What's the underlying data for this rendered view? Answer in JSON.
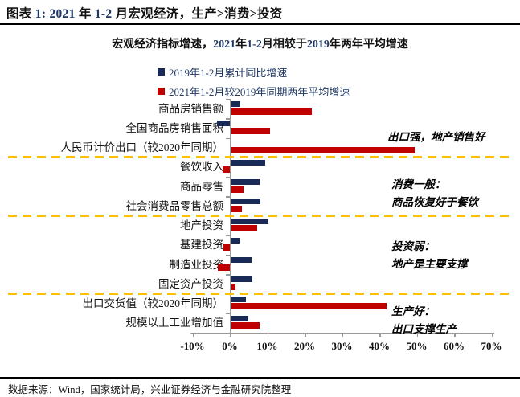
{
  "page": {
    "header_segments": [
      {
        "t": "图表 ",
        "c": "ink"
      },
      {
        "t": "1: 2021",
        "c": "num"
      },
      {
        "t": " 年 ",
        "c": "ink"
      },
      {
        "t": "1-2",
        "c": "num"
      },
      {
        "t": " 月宏观经济，生产>消费>投资",
        "c": "ink"
      }
    ],
    "header_text": "图表 1: 2021 年 1-2 月宏观经济，生产>消费>投资",
    "source": "数据来源：Wind，国家统计局，兴业证券经济与金融研究院整理"
  },
  "chart_data": {
    "type": "bar",
    "orientation": "horizontal",
    "title": "宏观经济指标增速，2021年1-2月相较于2019年两年平均增速",
    "title_segments": [
      {
        "t": "宏观经济指标增速，",
        "c": "ink"
      },
      {
        "t": "2021",
        "c": "num"
      },
      {
        "t": "年",
        "c": "ink"
      },
      {
        "t": "1-2",
        "c": "num"
      },
      {
        "t": "月相较于",
        "c": "ink"
      },
      {
        "t": "2019",
        "c": "num"
      },
      {
        "t": "年两年平均增速",
        "c": "ink"
      }
    ],
    "legend": [
      {
        "label": "2019年1-2月累计同比增速",
        "color": "#1A2A56"
      },
      {
        "label": "2021年1-2月较2019年同期两年平均增速",
        "color": "#C00000"
      }
    ],
    "legend_position": "top-left",
    "grid": false,
    "xlabel": "",
    "ylabel": "",
    "xlim": [
      -10,
      70
    ],
    "x_ticks": [
      "-10%",
      "0%",
      "10%",
      "20%",
      "30%",
      "40%",
      "50%",
      "60%",
      "70%"
    ],
    "x_tick_values": [
      -10,
      0,
      10,
      20,
      30,
      40,
      50,
      60,
      70
    ],
    "categories": [
      "商品房销售额",
      "全国商品房销售面积",
      "人民币计价出口（较2020年同期）",
      "餐饮收入",
      "商品零售",
      "社会消费品零售总额",
      "地产投资",
      "基建投资",
      "制造业投资",
      "固定资产投资",
      "出口交货值（较2020年同期）",
      "规模以上工业增加值"
    ],
    "series": [
      {
        "name": "2019年1-2月累计同比增速",
        "values": [
          2.8,
          -3.5,
          0.3,
          9.5,
          7.9,
          8.2,
          10.4,
          2.5,
          5.8,
          6.0,
          4.2,
          5.0
        ]
      },
      {
        "name": "2021年1-2月较2019年同期两年平均增速",
        "values": [
          22.0,
          10.8,
          49.5,
          -2.0,
          3.6,
          3.2,
          7.4,
          -1.7,
          -3.3,
          1.6,
          42.0,
          7.9
        ]
      }
    ],
    "separators_after_category_index": [
      2,
      5,
      9
    ],
    "separator_color": "#FFC000",
    "annotations": [
      {
        "lines": [
          "出口强，地产销售好"
        ],
        "x": 482,
        "y": 160
      },
      {
        "lines": [
          "消费一般：",
          "商品恢复好于餐饮"
        ],
        "x": 487,
        "y": 219
      },
      {
        "lines": [
          "投资弱：",
          "地产是主要支撑"
        ],
        "x": 487,
        "y": 296
      },
      {
        "lines": [
          "生产好：",
          "出口支撑生产"
        ],
        "x": 487,
        "y": 377
      }
    ],
    "colors": {
      "series_2019": "#1A2A56",
      "series_2021": "#C00000",
      "separator": "#FFC000",
      "axis": "#9a9a9a",
      "digit_blue": "#1F3864"
    }
  }
}
